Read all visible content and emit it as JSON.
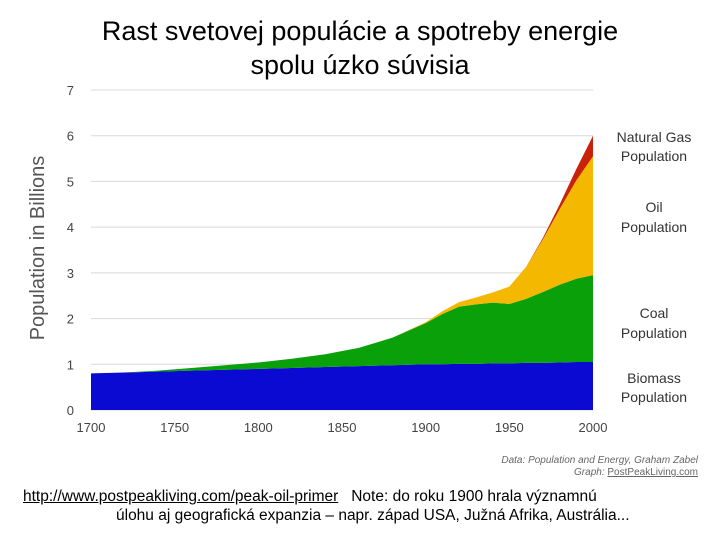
{
  "slide": {
    "title_line1": "Rast svetovej populácie a spotreby energie",
    "title_line2": "spolu úzko súvisia"
  },
  "chart_data": {
    "type": "area",
    "stacked": true,
    "ylabel": "Population in Billions",
    "xlabel": "",
    "xlim": [
      1700,
      2000
    ],
    "ylim": [
      0,
      7
    ],
    "x_ticks": [
      "1700",
      "1750",
      "1800",
      "1850",
      "1900",
      "1950",
      "2000"
    ],
    "y_ticks": [
      "0",
      "1",
      "2",
      "3",
      "4",
      "5",
      "6",
      "7"
    ],
    "grid": "horizontal",
    "x": [
      1700,
      1720,
      1740,
      1760,
      1780,
      1800,
      1820,
      1840,
      1860,
      1880,
      1900,
      1910,
      1920,
      1930,
      1940,
      1950,
      1960,
      1970,
      1980,
      1990,
      2000
    ],
    "series": [
      {
        "name": "Biomass Population",
        "label_line1": "Biomass",
        "label_line2": "Population",
        "color": "#0a0ad2",
        "values": [
          0.8,
          0.82,
          0.84,
          0.86,
          0.88,
          0.9,
          0.92,
          0.94,
          0.96,
          0.98,
          1.0,
          1.0,
          1.01,
          1.01,
          1.02,
          1.02,
          1.03,
          1.03,
          1.04,
          1.05,
          1.05
        ]
      },
      {
        "name": "Coal Population",
        "label_line1": "Coal",
        "label_line2": "Population",
        "color": "#0aa00a",
        "values": [
          0.0,
          0.0,
          0.02,
          0.06,
          0.1,
          0.14,
          0.2,
          0.28,
          0.4,
          0.6,
          0.9,
          1.1,
          1.25,
          1.3,
          1.33,
          1.3,
          1.4,
          1.55,
          1.7,
          1.82,
          1.9
        ]
      },
      {
        "name": "Oil Population",
        "label_line1": "Oil",
        "label_line2": "Population",
        "color": "#f5b800",
        "values": [
          0.0,
          0.0,
          0.0,
          0.0,
          0.0,
          0.0,
          0.0,
          0.0,
          0.0,
          0.0,
          0.02,
          0.06,
          0.1,
          0.15,
          0.22,
          0.38,
          0.7,
          1.15,
          1.65,
          2.15,
          2.6
        ]
      },
      {
        "name": "Natural Gas Population",
        "label_line1": "Natural Gas",
        "label_line2": "Population",
        "color": "#c8220a",
        "values": [
          0.0,
          0.0,
          0.0,
          0.0,
          0.0,
          0.0,
          0.0,
          0.0,
          0.0,
          0.0,
          0.0,
          0.0,
          0.0,
          0.0,
          0.0,
          0.0,
          0.0,
          0.03,
          0.1,
          0.25,
          0.45
        ]
      }
    ],
    "source_line1_prefix": "Data: ",
    "source_line1_italic": "Population and Energy",
    "source_line1_suffix": ", Graham Zabel",
    "source_line2_prefix": "Graph: ",
    "source_line2_link": "PostPeakLiving.com"
  },
  "footer": {
    "link": "http://www.postpeakliving.com/peak-oil-primer",
    "note_line1": "Note: do roku 1900 hrala významnú",
    "note_line2": "úlohu aj geografická expanzia – napr. západ USA, Južná Afrika, Austrália..."
  }
}
